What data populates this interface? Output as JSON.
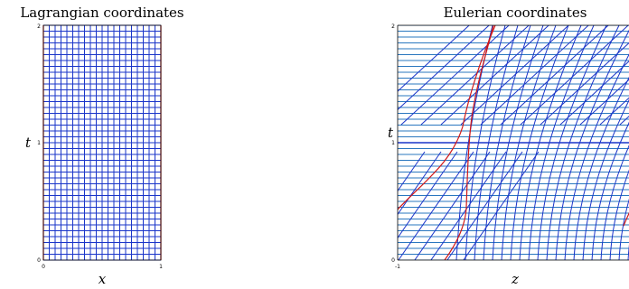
{
  "left": {
    "title": "Lagrangian coordinates",
    "xlabel": "x",
    "ylabel": "t",
    "xticks": [
      "0",
      "1"
    ],
    "yticks": [
      "0",
      "1",
      "2"
    ]
  },
  "right": {
    "title": "Eulerian coordinates",
    "xlabel": "z",
    "ylabel": "t",
    "xticks": [
      "-1"
    ],
    "yticks": [
      "0",
      "1",
      "2"
    ]
  },
  "colors": {
    "grid": "#1a35c9",
    "grid_h": "#2a77bf",
    "boundary": "#d01818",
    "axis": "#000000"
  }
}
